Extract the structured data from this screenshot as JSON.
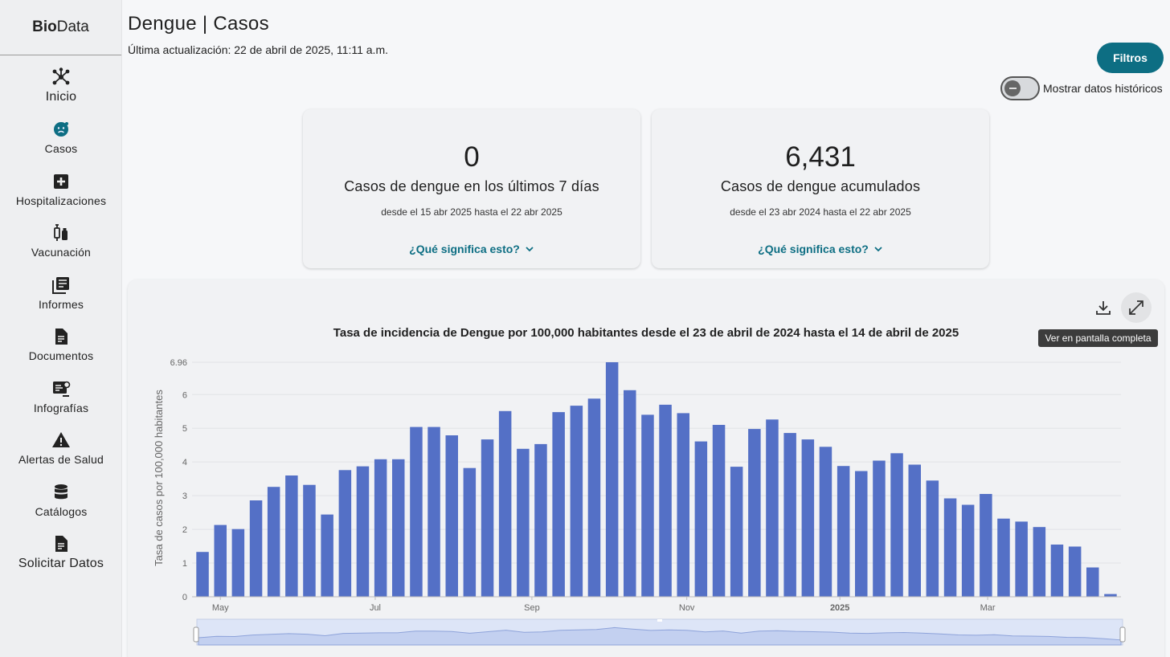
{
  "sidebar": {
    "logo_bold": "Bio",
    "logo_rest": "Data",
    "items": [
      {
        "label": "Inicio",
        "icon": "hub-icon"
      },
      {
        "label": "Casos",
        "icon": "virus-face-icon"
      },
      {
        "label": "Hospitalizaciones",
        "icon": "hospital-plus-icon"
      },
      {
        "label": "Vacunación",
        "icon": "vaccine-icon"
      },
      {
        "label": "Informes",
        "icon": "reports-icon"
      },
      {
        "label": "Documentos",
        "icon": "document-icon"
      },
      {
        "label": "Infografías",
        "icon": "infographic-icon"
      },
      {
        "label": "Alertas de Salud",
        "icon": "warning-icon"
      },
      {
        "label": "Catálogos",
        "icon": "database-icon"
      },
      {
        "label": "Solicitar Datos",
        "icon": "request-document-icon"
      }
    ]
  },
  "header": {
    "title": "Dengue | Casos",
    "updated": "Última actualización: 22 de abril de 2025, 11:11 a.m.",
    "filters_label": "Filtros",
    "toggle_label": "Mostrar datos históricos",
    "toggle_on": false
  },
  "cards": [
    {
      "value": "0",
      "title": "Casos de dengue en los últimos 7 días",
      "range": "desde el 15 abr 2025 hasta el 22 abr 2025",
      "more": "¿Qué significa esto?"
    },
    {
      "value": "6,431",
      "title": "Casos de dengue acumulados",
      "range": "desde el 23 abr 2024 hasta el 22 abr 2025",
      "more": "¿Qué significa esto?"
    }
  ],
  "chart_toolbar": {
    "download_icon": "download-icon",
    "fullscreen_icon": "fullscreen-icon",
    "tooltip": "Ver en pantalla completa"
  },
  "colors": {
    "accent": "#0d6e83",
    "bar": "#5470c6"
  },
  "chart_data": {
    "type": "bar",
    "title": "Tasa de incidencia de Dengue por 100,000 habitantes desde el 23 de abril de 2024 hasta el 14 de abril de 2025",
    "ylabel": "Tasa de casos por 100,000 habitantes",
    "xlabel": "",
    "ylim": [
      0,
      6.96
    ],
    "y_ticks": [
      "0",
      "1",
      "2",
      "3",
      "4",
      "5",
      "6",
      "6.96"
    ],
    "x_tick_labels": [
      "May",
      "Jul",
      "Sep",
      "Nov",
      "2025",
      "Mar"
    ],
    "values": [
      1.33,
      2.13,
      2.01,
      2.86,
      3.26,
      3.6,
      3.32,
      2.44,
      3.76,
      3.87,
      4.08,
      4.08,
      5.04,
      5.04,
      4.79,
      3.82,
      4.67,
      5.51,
      4.39,
      4.53,
      5.48,
      5.67,
      5.88,
      6.96,
      6.13,
      5.4,
      5.7,
      5.45,
      4.61,
      5.1,
      3.86,
      4.98,
      5.26,
      4.86,
      4.67,
      4.45,
      3.88,
      3.73,
      4.04,
      4.26,
      3.92,
      3.45,
      2.92,
      2.73,
      3.05,
      2.32,
      2.23,
      2.07,
      1.55,
      1.49,
      0.87,
      0.08
    ],
    "grid": true,
    "legend": "none"
  }
}
